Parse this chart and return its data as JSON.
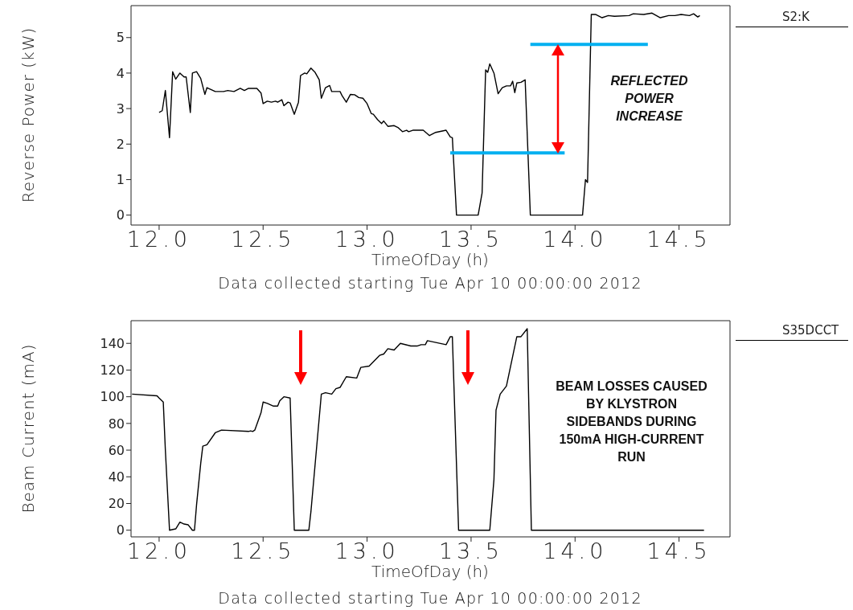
{
  "chart_data": [
    {
      "type": "line",
      "xlabel": "TimeOfDay (h)",
      "ylabel": "Reverse Power (kW)",
      "legend": "top right",
      "xlim": [
        11.865,
        14.745
      ],
      "ylim": [
        -0.28,
        5.9
      ],
      "xticks": [
        {
          "value": 12,
          "label": "12.0"
        },
        {
          "value": 12.5,
          "label": "12.5"
        },
        {
          "value": 13,
          "label": "13.0"
        },
        {
          "value": 13.5,
          "label": "13.5"
        },
        {
          "value": 14,
          "label": "14.0"
        },
        {
          "value": 14.5,
          "label": "14.5"
        }
      ],
      "yticks": [
        0,
        1,
        2,
        3,
        4,
        5
      ],
      "annotations": [
        "REFLECTED POWER INCREASE",
        "Data collected starting Tue Apr 10 00:00:00 2012"
      ],
      "series": [
        {
          "name": "S2:K",
          "color": "#000000",
          "x": [
            12.0,
            12.015,
            12.03,
            12.05,
            12.065,
            12.08,
            12.1,
            12.12,
            12.13,
            12.15,
            12.16,
            12.18,
            12.2,
            12.22,
            12.23,
            12.27,
            12.31,
            12.33,
            12.36,
            12.39,
            12.41,
            12.43,
            12.47,
            12.49,
            12.5,
            12.52,
            12.54,
            12.56,
            12.57,
            12.59,
            12.6,
            12.62,
            12.63,
            12.65,
            12.67,
            12.68,
            12.7,
            12.71,
            12.73,
            12.75,
            12.77,
            12.78,
            12.8,
            12.82,
            12.83,
            12.87,
            12.88,
            12.9,
            12.92,
            12.94,
            12.96,
            12.98,
            13.0,
            13.02,
            13.03,
            13.05,
            13.07,
            13.08,
            13.1,
            13.13,
            13.15,
            13.17,
            13.19,
            13.2,
            13.22,
            13.27,
            13.3,
            13.33,
            13.38,
            13.4,
            13.41,
            13.43,
            13.534,
            13.553,
            13.57,
            13.58,
            13.59,
            13.61,
            13.63,
            13.65,
            13.67,
            13.69,
            13.7,
            13.71,
            13.72,
            13.74,
            13.76,
            13.785,
            14.036,
            14.05,
            14.06,
            14.078,
            14.1,
            14.13,
            14.16,
            14.19,
            14.26,
            14.28,
            14.33,
            14.37,
            14.41,
            14.45,
            14.48,
            14.51,
            14.55,
            14.57,
            14.59,
            14.6
          ],
          "values": [
            2.89,
            2.94,
            3.51,
            2.18,
            4.04,
            3.83,
            4.0,
            3.89,
            3.89,
            2.89,
            4.0,
            4.04,
            3.85,
            3.4,
            3.59,
            3.48,
            3.48,
            3.51,
            3.48,
            3.57,
            3.51,
            3.57,
            3.57,
            3.44,
            3.14,
            3.21,
            3.18,
            3.21,
            3.18,
            3.25,
            3.08,
            3.18,
            3.16,
            2.84,
            3.18,
            3.93,
            4.0,
            3.98,
            4.14,
            4.02,
            3.81,
            3.29,
            3.59,
            3.65,
            3.48,
            3.48,
            3.36,
            3.18,
            3.4,
            3.39,
            3.31,
            3.29,
            3.14,
            2.86,
            2.84,
            2.69,
            2.58,
            2.65,
            2.5,
            2.52,
            2.46,
            2.35,
            2.39,
            2.35,
            2.39,
            2.39,
            2.24,
            2.33,
            2.39,
            2.2,
            2.18,
            0,
            0,
            0.62,
            4.09,
            4.02,
            4.26,
            4.0,
            3.42,
            3.59,
            3.64,
            3.64,
            3.77,
            3.45,
            3.72,
            3.74,
            3.81,
            0,
            0,
            1.0,
            0.92,
            5.65,
            5.65,
            5.56,
            5.62,
            5.6,
            5.62,
            5.67,
            5.65,
            5.69,
            5.56,
            5.62,
            5.62,
            5.65,
            5.62,
            5.67,
            5.58,
            5.62
          ]
        },
        {
          "color": "#00b0f0",
          "x": [
            13.4,
            13.95
          ],
          "values": [
            1.75,
            1.75
          ]
        },
        {
          "color": "#00b0f0",
          "x": [
            13.785,
            14.35
          ],
          "values": [
            4.81,
            4.81
          ]
        }
      ]
    },
    {
      "type": "line",
      "xlabel": "TimeOfDay (h)",
      "ylabel": "Beam Current (mA)",
      "legend": "top right",
      "xlim": [
        11.865,
        14.745
      ],
      "ylim": [
        -5,
        157
      ],
      "xticks": [
        {
          "value": 12,
          "label": "12.0"
        },
        {
          "value": 12.5,
          "label": "12.5"
        },
        {
          "value": 13,
          "label": "13.0"
        },
        {
          "value": 13.5,
          "label": "13.5"
        },
        {
          "value": 14,
          "label": "14.0"
        },
        {
          "value": 14.5,
          "label": "14.5"
        }
      ],
      "yticks": [
        0,
        20,
        40,
        60,
        80,
        100,
        120,
        140
      ],
      "annotations": [
        "BEAM LOSSES CAUSED BY KLYSTRON SIDEBANDS DURING 150mA HIGH-CURRENT RUN",
        "Data collected starting Tue Apr 10 00:00:00 2012"
      ],
      "series": [
        {
          "name": "S35DCCT",
          "color": "#000000",
          "x": [
            11.87,
            11.99,
            12.0,
            12.02,
            12.03,
            12.05,
            12.08,
            12.1,
            12.12,
            12.14,
            12.16,
            12.17,
            12.18,
            12.2,
            12.21,
            12.23,
            12.27,
            12.3,
            12.43,
            12.44,
            12.45,
            12.46,
            12.49,
            12.5,
            12.52,
            12.55,
            12.57,
            12.58,
            12.6,
            12.63,
            12.65,
            12.72,
            12.73,
            12.78,
            12.8,
            12.83,
            12.85,
            12.87,
            12.9,
            12.95,
            12.97,
            13.01,
            13.06,
            13.08,
            13.1,
            13.13,
            13.16,
            13.21,
            13.24,
            13.26,
            13.28,
            13.29,
            13.38,
            13.4,
            13.41,
            13.44,
            13.59,
            13.61,
            13.62,
            13.64,
            13.67,
            13.72,
            13.74,
            13.77,
            13.79,
            14.62
          ],
          "values": [
            102,
            100.7,
            99,
            96,
            60,
            0,
            1,
            6,
            4.6,
            4,
            0,
            0,
            19,
            50,
            63,
            64,
            73,
            75,
            74,
            74.4,
            74,
            75,
            88,
            96,
            95,
            93,
            93,
            97,
            100,
            99,
            0,
            0,
            14,
            102,
            103,
            102,
            106,
            107,
            115,
            114,
            122,
            123,
            131,
            132,
            136,
            135,
            140,
            138,
            138,
            139,
            139,
            142,
            139,
            145,
            145,
            0,
            0,
            38,
            90,
            102,
            108,
            145,
            145,
            151,
            0,
            0
          ]
        }
      ]
    }
  ]
}
